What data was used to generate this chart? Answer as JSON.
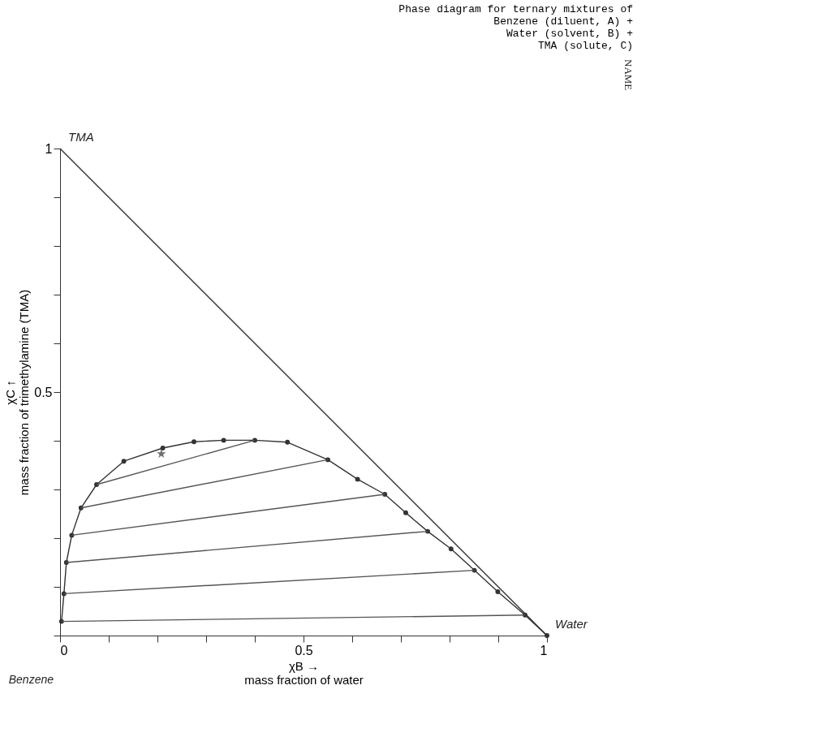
{
  "chart_data": {
    "type": "line",
    "title": "Phase diagram for ternary mixtures of\nBenzene (diluent, A) +\nWater   (solvent, B) +\nTMA     (solute,  C)",
    "xlabel": "χB →\nmass fraction of water",
    "ylabel": "χC ↑\nmass fraction of trimethylamine (TMA)",
    "xlim": [
      0,
      1
    ],
    "ylim": [
      0,
      1
    ],
    "xticks": [
      0,
      {
        "value": 0.1,
        "label": null
      },
      {
        "value": 0.2,
        "label": null
      },
      {
        "value": 0.3,
        "label": null
      },
      {
        "value": 0.4,
        "label": null
      },
      0.5,
      {
        "value": 0.6,
        "label": null
      },
      {
        "value": 0.7,
        "label": null
      },
      {
        "value": 0.8,
        "label": null
      },
      {
        "value": 0.9,
        "label": null
      },
      1
    ],
    "yticks": [
      {
        "value": 0,
        "label": null
      },
      {
        "value": 0.1,
        "label": null
      },
      {
        "value": 0.2,
        "label": null
      },
      {
        "value": 0.3,
        "label": null
      },
      {
        "value": 0.4,
        "label": null
      },
      0.5,
      {
        "value": 0.6,
        "label": null
      },
      {
        "value": 0.7,
        "label": null
      },
      {
        "value": 0.8,
        "label": null
      },
      {
        "value": 0.9,
        "label": null
      },
      1
    ],
    "grid": false,
    "line_style": "solid",
    "series": [
      {
        "color": "#333333",
        "marker": "none",
        "x": [
          0,
          1
        ],
        "values": [
          1,
          0
        ]
      },
      {
        "color": "#333333",
        "marker": "circle",
        "x": [
          0.003,
          0.008,
          0.013,
          0.024,
          0.043,
          0.075,
          0.131,
          0.211,
          0.275,
          0.336,
          0.4,
          0.467,
          0.55,
          0.611,
          0.667,
          0.71,
          0.755,
          0.803,
          0.851,
          0.899,
          0.955,
          1
        ],
        "values": [
          0.029,
          0.086,
          0.15,
          0.206,
          0.262,
          0.31,
          0.358,
          0.385,
          0.398,
          0.401,
          0.401,
          0.397,
          0.361,
          0.321,
          0.29,
          0.252,
          0.214,
          0.178,
          0.134,
          0.09,
          0.042,
          0
        ]
      },
      {
        "type": "line",
        "color": "#555555",
        "marker": "none",
        "x": [
          0.003,
          0.955
        ],
        "values": [
          0.029,
          0.042
        ]
      },
      {
        "type": "line",
        "color": "#555555",
        "marker": "none",
        "x": [
          0.008,
          0.851
        ],
        "values": [
          0.086,
          0.134
        ]
      },
      {
        "type": "line",
        "color": "#555555",
        "marker": "none",
        "x": [
          0.013,
          0.755
        ],
        "values": [
          0.15,
          0.214
        ]
      },
      {
        "type": "line",
        "color": "#555555",
        "marker": "none",
        "x": [
          0.024,
          0.667
        ],
        "values": [
          0.206,
          0.29
        ]
      },
      {
        "type": "line",
        "color": "#555555",
        "marker": "none",
        "x": [
          0.043,
          0.55
        ],
        "values": [
          0.262,
          0.361
        ]
      },
      {
        "type": "line",
        "color": "#555555",
        "marker": "none",
        "x": [
          0.075,
          0.4
        ],
        "values": [
          0.31,
          0.401
        ]
      },
      {
        "type": "scatter",
        "color": "#333333",
        "marker": "star",
        "x": [
          0.208
        ],
        "values": [
          0.373
        ]
      }
    ],
    "annotations": [
      {
        "text": "TMA",
        "x": 0,
        "y": 1
      },
      "Benzene",
      {
        "text": "Water",
        "x": 1,
        "y": 0
      },
      "NAME"
    ]
  }
}
